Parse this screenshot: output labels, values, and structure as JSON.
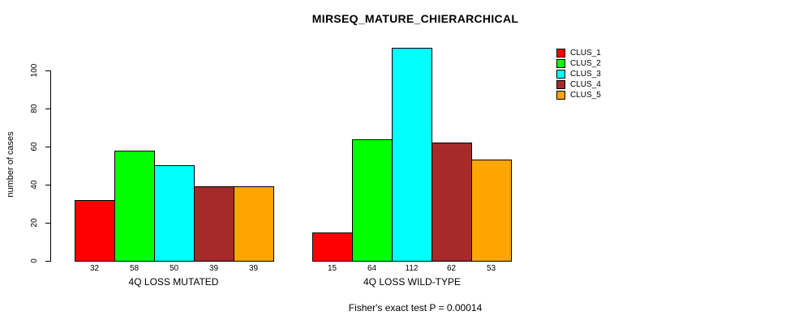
{
  "chart_data": {
    "type": "bar",
    "title": "MIRSEQ_MATURE_CHIERARCHICAL",
    "xlabel": "",
    "ylabel": "number of cases",
    "yticks": [
      0,
      20,
      40,
      60,
      80,
      100
    ],
    "ylim": [
      0,
      112
    ],
    "grid": false,
    "legend_position": "right-outside",
    "categories": [
      "4Q LOSS MUTATED",
      "4Q LOSS WILD-TYPE"
    ],
    "groups": [
      {
        "label": "4Q LOSS MUTATED",
        "values": [
          32,
          58,
          50,
          39,
          39
        ]
      },
      {
        "label": "4Q LOSS WILD-TYPE",
        "values": [
          15,
          64,
          112,
          62,
          53
        ]
      }
    ],
    "series": [
      {
        "name": "CLUS_1",
        "color": "#FF0000",
        "values": [
          32,
          15
        ]
      },
      {
        "name": "CLUS_2",
        "color": "#00FF00",
        "values": [
          58,
          64
        ]
      },
      {
        "name": "CLUS_3",
        "color": "#00FFFF",
        "values": [
          50,
          112
        ]
      },
      {
        "name": "CLUS_4",
        "color": "#A52A2A",
        "values": [
          39,
          62
        ]
      },
      {
        "name": "CLUS_5",
        "color": "#FFA500",
        "values": [
          39,
          53
        ]
      }
    ],
    "annotation": "Fisher's exact test P = 0.00014"
  },
  "colors": {
    "bar_border": "#000000",
    "background": "#FFFFFF",
    "text": "#000000"
  }
}
